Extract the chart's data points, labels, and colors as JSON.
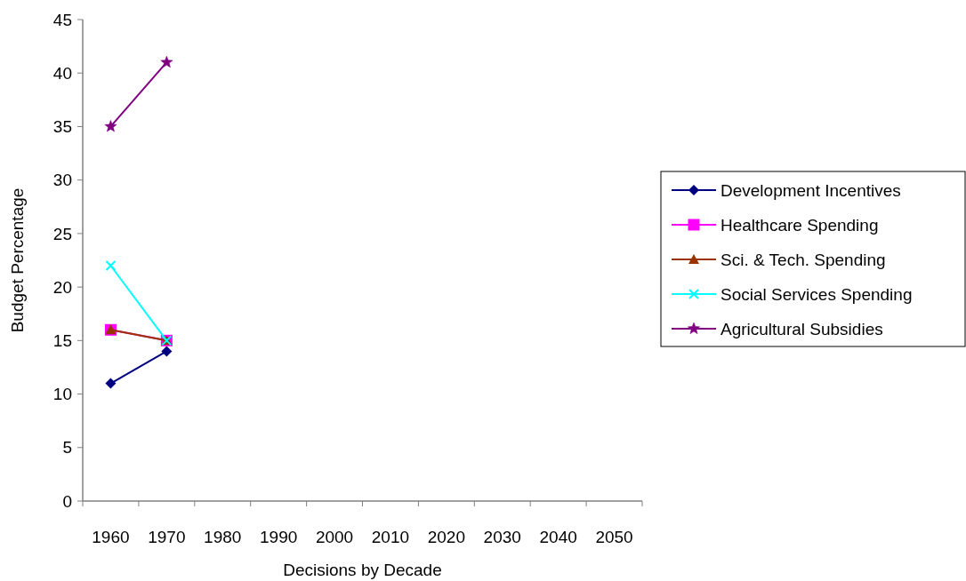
{
  "chart_data": {
    "type": "line",
    "xlabel": "Decisions by Decade",
    "ylabel": "Budget Percentage",
    "categories": [
      "1960",
      "1970",
      "1980",
      "1990",
      "2000",
      "2010",
      "2020",
      "2030",
      "2040",
      "2050"
    ],
    "ylim": [
      0,
      45
    ],
    "yticks": [
      0,
      5,
      10,
      15,
      20,
      25,
      30,
      35,
      40,
      45
    ],
    "grid": false,
    "legend": "right",
    "series": [
      {
        "name": "Development Incentives",
        "color": "#000080",
        "marker": "diamond",
        "values": [
          11,
          14,
          null,
          null,
          null,
          null,
          null,
          null,
          null,
          null
        ]
      },
      {
        "name": "Healthcare Spending",
        "color": "#ff00ff",
        "marker": "square",
        "values": [
          16,
          15,
          null,
          null,
          null,
          null,
          null,
          null,
          null,
          null
        ]
      },
      {
        "name": "Sci. & Tech. Spending",
        "color": "#993300",
        "marker": "triangle",
        "values": [
          16,
          15,
          null,
          null,
          null,
          null,
          null,
          null,
          null,
          null
        ]
      },
      {
        "name": "Social Services Spending",
        "color": "#00ffff",
        "marker": "cross",
        "values": [
          22,
          15,
          null,
          null,
          null,
          null,
          null,
          null,
          null,
          null
        ]
      },
      {
        "name": "Agricultural Subsidies",
        "color": "#800080",
        "marker": "star",
        "values": [
          35,
          41,
          null,
          null,
          null,
          null,
          null,
          null,
          null,
          null
        ]
      }
    ]
  }
}
